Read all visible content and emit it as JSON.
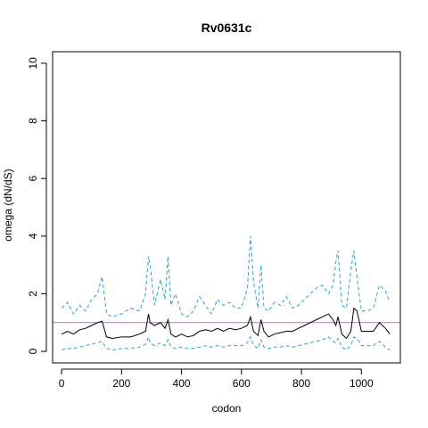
{
  "chart_data": {
    "type": "line",
    "title": "Rv0631c",
    "xlabel": "codon",
    "ylabel": "omega (dN/dS)",
    "xlim": [
      -30,
      1130
    ],
    "ylim": [
      -0.4,
      10.4
    ],
    "xticks": [
      0,
      200,
      400,
      600,
      800,
      1000
    ],
    "yticks": [
      0,
      2,
      4,
      6,
      8,
      10
    ],
    "reference_line": {
      "y": 1,
      "color": "#cc66cc"
    },
    "series": [
      {
        "style": "dashed",
        "color": "#2b9fd9",
        "x": [
          0,
          20,
          40,
          60,
          80,
          100,
          120,
          135,
          150,
          170,
          200,
          230,
          260,
          280,
          290,
          295,
          310,
          330,
          345,
          355,
          365,
          380,
          400,
          420,
          440,
          460,
          480,
          500,
          520,
          540,
          560,
          580,
          600,
          620,
          630,
          640,
          655,
          665,
          675,
          690,
          710,
          730,
          750,
          770,
          790,
          810,
          830,
          850,
          870,
          890,
          905,
          915,
          922,
          935,
          950,
          965,
          975,
          985,
          1000,
          1020,
          1040,
          1060,
          1080,
          1095
        ],
        "y": [
          1.5,
          1.7,
          1.3,
          1.6,
          1.4,
          1.8,
          2.0,
          2.6,
          1.3,
          1.2,
          1.3,
          1.5,
          1.4,
          2.0,
          3.3,
          3.0,
          1.6,
          2.5,
          1.8,
          3.3,
          1.6,
          2.0,
          1.3,
          1.2,
          1.4,
          1.9,
          1.6,
          1.3,
          1.8,
          1.6,
          1.7,
          1.5,
          1.5,
          2.2,
          4.0,
          2.4,
          1.5,
          3.0,
          1.5,
          1.4,
          1.7,
          1.6,
          1.9,
          1.5,
          1.6,
          1.8,
          2.0,
          2.2,
          2.3,
          2.0,
          2.3,
          3.1,
          3.5,
          1.6,
          1.5,
          2.8,
          3.5,
          2.6,
          1.4,
          1.4,
          1.5,
          2.3,
          2.1,
          1.7
        ]
      },
      {
        "style": "solid",
        "color": "#000000",
        "x": [
          0,
          20,
          40,
          60,
          80,
          100,
          120,
          135,
          150,
          170,
          200,
          230,
          260,
          280,
          290,
          295,
          310,
          330,
          345,
          355,
          365,
          380,
          400,
          420,
          440,
          460,
          480,
          500,
          520,
          540,
          560,
          580,
          600,
          620,
          630,
          640,
          655,
          665,
          675,
          690,
          710,
          730,
          750,
          770,
          790,
          810,
          830,
          850,
          870,
          890,
          905,
          915,
          922,
          935,
          950,
          965,
          975,
          985,
          1000,
          1020,
          1040,
          1060,
          1080,
          1095
        ],
        "y": [
          0.6,
          0.7,
          0.6,
          0.75,
          0.8,
          0.9,
          1.0,
          1.05,
          0.5,
          0.45,
          0.5,
          0.5,
          0.6,
          0.7,
          1.3,
          1.0,
          0.9,
          1.0,
          0.8,
          1.1,
          0.6,
          0.5,
          0.6,
          0.5,
          0.55,
          0.7,
          0.75,
          0.7,
          0.8,
          0.7,
          0.8,
          0.75,
          0.8,
          0.9,
          1.2,
          0.7,
          0.55,
          1.1,
          0.7,
          0.5,
          0.6,
          0.65,
          0.7,
          0.7,
          0.8,
          0.9,
          1.0,
          1.1,
          1.2,
          1.3,
          1.1,
          0.9,
          1.2,
          0.6,
          0.45,
          0.7,
          1.5,
          1.4,
          0.7,
          0.7,
          0.7,
          1.0,
          0.8,
          0.6
        ]
      },
      {
        "style": "dashed",
        "color": "#2b9fd9",
        "x": [
          0,
          20,
          40,
          60,
          80,
          100,
          120,
          135,
          150,
          170,
          200,
          230,
          260,
          280,
          290,
          295,
          310,
          330,
          345,
          355,
          365,
          380,
          400,
          420,
          440,
          460,
          480,
          500,
          520,
          540,
          560,
          580,
          600,
          620,
          630,
          640,
          655,
          665,
          675,
          690,
          710,
          730,
          750,
          770,
          790,
          810,
          830,
          850,
          870,
          890,
          905,
          915,
          922,
          935,
          950,
          965,
          975,
          985,
          1000,
          1020,
          1040,
          1060,
          1080,
          1095
        ],
        "y": [
          0.05,
          0.1,
          0.1,
          0.15,
          0.2,
          0.25,
          0.3,
          0.35,
          0.1,
          0.05,
          0.1,
          0.1,
          0.15,
          0.25,
          0.5,
          0.3,
          0.2,
          0.3,
          0.2,
          0.4,
          0.15,
          0.1,
          0.15,
          0.1,
          0.1,
          0.15,
          0.2,
          0.15,
          0.2,
          0.15,
          0.2,
          0.2,
          0.2,
          0.3,
          0.5,
          0.2,
          0.1,
          0.4,
          0.15,
          0.1,
          0.15,
          0.15,
          0.2,
          0.15,
          0.2,
          0.25,
          0.3,
          0.35,
          0.4,
          0.5,
          0.35,
          0.3,
          0.45,
          0.15,
          0.05,
          0.2,
          0.5,
          0.45,
          0.2,
          0.2,
          0.2,
          0.35,
          0.15,
          0.05
        ]
      }
    ]
  }
}
